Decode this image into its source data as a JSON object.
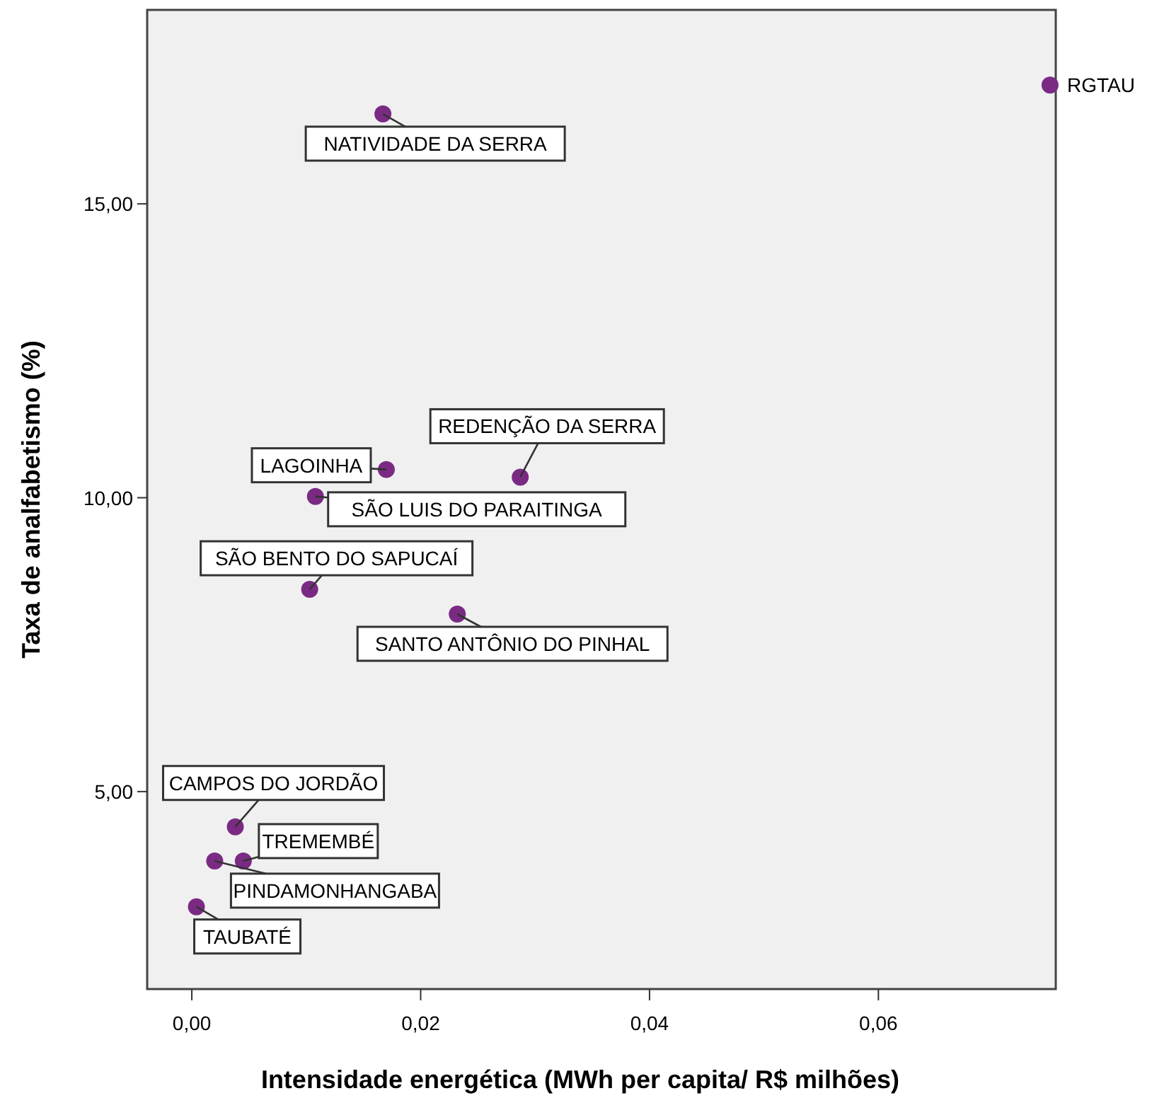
{
  "chart_data": {
    "type": "scatter",
    "xlabel": "Intensidade energética (MWh per capita/ R$ milhões)",
    "ylabel": "Taxa de analfabetismo (%)",
    "x": [
      0.075,
      0.0167,
      0.017,
      0.0287,
      0.0108,
      0.0103,
      0.0232,
      0.0038,
      0.0045,
      0.002,
      0.0004
    ],
    "values": [
      17.02,
      16.53,
      10.48,
      10.35,
      10.02,
      8.44,
      8.02,
      4.4,
      3.82,
      3.82,
      3.04
    ],
    "color": "#7b2a84",
    "marker": "circle",
    "grid": false,
    "xlim": [
      -0.0039,
      0.0755
    ],
    "ylim": [
      1.64,
      18.3
    ],
    "xticks": [
      {
        "value": 0,
        "label": "0,00"
      },
      {
        "value": 0.02,
        "label": "0,02"
      },
      {
        "value": 0.04,
        "label": "0,04"
      },
      {
        "value": 0.06,
        "label": "0,06"
      }
    ],
    "yticks": [
      {
        "value": 5,
        "label": "5,00"
      },
      {
        "value": 10,
        "label": "10,00"
      },
      {
        "value": 15,
        "label": "15,00"
      }
    ],
    "annotations": [
      {
        "text": "RGTAU",
        "x": 0.075,
        "y": 17.02
      },
      {
        "text": "NATIVIDADE DA SERRA",
        "x": 0.0167,
        "y": 16.53
      },
      {
        "text": "LAGOINHA",
        "x": 0.017,
        "y": 10.48
      },
      {
        "text": "REDENÇÃO DA SERRA",
        "x": 0.0287,
        "y": 10.35
      },
      {
        "text": "SÃO LUIS DO PARAITINGA",
        "x": 0.0108,
        "y": 10.02
      },
      {
        "text": "SÃO BENTO DO SAPUCAÍ",
        "x": 0.0103,
        "y": 8.44
      },
      {
        "text": "SANTO ANTÔNIO DO PINHAL",
        "x": 0.0232,
        "y": 8.02
      },
      {
        "text": "CAMPOS DO JORDÃO",
        "x": 0.0038,
        "y": 4.4
      },
      {
        "text": "TREMEMBÉ",
        "x": 0.0045,
        "y": 3.82
      },
      {
        "text": "PINDAMONHANGABA",
        "x": 0.002,
        "y": 3.82
      },
      {
        "text": "TAUBATÉ",
        "x": 0.0004,
        "y": 3.04
      }
    ]
  }
}
